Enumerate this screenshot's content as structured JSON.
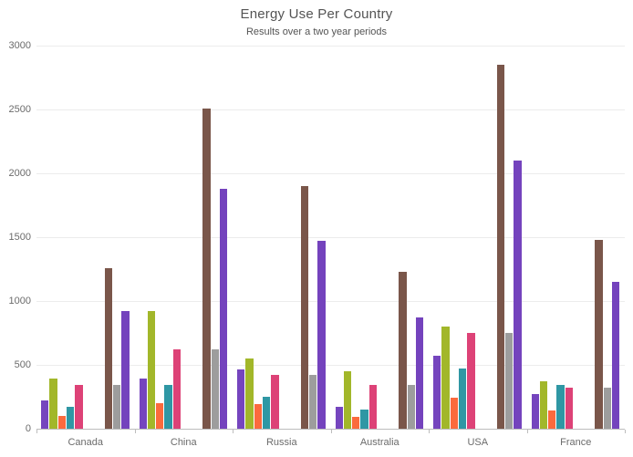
{
  "title": "Energy Use Per Country",
  "subtitle": "Results over a two year periods",
  "chart_data": {
    "type": "bar",
    "title": "Energy Use Per Country",
    "subtitle": "Results over a two year periods",
    "categories": [
      "Canada",
      "China",
      "Russia",
      "Australia",
      "USA",
      "France"
    ],
    "series": [
      {
        "name": "purple",
        "color": "#7545be",
        "values": [
          220,
          395,
          465,
          175,
          575,
          270
        ]
      },
      {
        "name": "olive-green",
        "color": "#a2b72a",
        "values": [
          395,
          920,
          550,
          450,
          800,
          375
        ]
      },
      {
        "name": "orange",
        "color": "#fb6a3d",
        "values": [
          100,
          200,
          195,
          95,
          245,
          145
        ]
      },
      {
        "name": "teal",
        "color": "#2f97a4",
        "values": [
          170,
          345,
          250,
          150,
          470,
          345
        ]
      },
      {
        "name": "pink",
        "color": "#dd4277",
        "values": [
          345,
          620,
          420,
          345,
          750,
          320
        ]
      },
      {
        "name": "brown",
        "color": "#7a564a",
        "values": [
          1260,
          2505,
          1900,
          1230,
          2850,
          1480
        ]
      },
      {
        "name": "gray",
        "color": "#9d9d9d",
        "values": [
          345,
          620,
          420,
          345,
          750,
          320
        ]
      },
      {
        "name": "violet",
        "color": "#7443bd",
        "values": [
          920,
          1880,
          1475,
          870,
          2100,
          1150
        ]
      }
    ],
    "ylim": [
      0,
      3000
    ],
    "yticks": [
      0,
      500,
      1000,
      1500,
      2000,
      2500,
      3000
    ],
    "xlabel": "",
    "ylabel": "",
    "grid": true,
    "legend": "none",
    "layout_note": "each category shows the first 5 series clustered left and last 3 series clustered right with a gap between"
  },
  "colors": {
    "background": "#ffffff",
    "grid_line": "#ececec",
    "axis_line": "#bdbdbd",
    "title_text": "#545454",
    "axis_text": "#6b6b6b"
  }
}
